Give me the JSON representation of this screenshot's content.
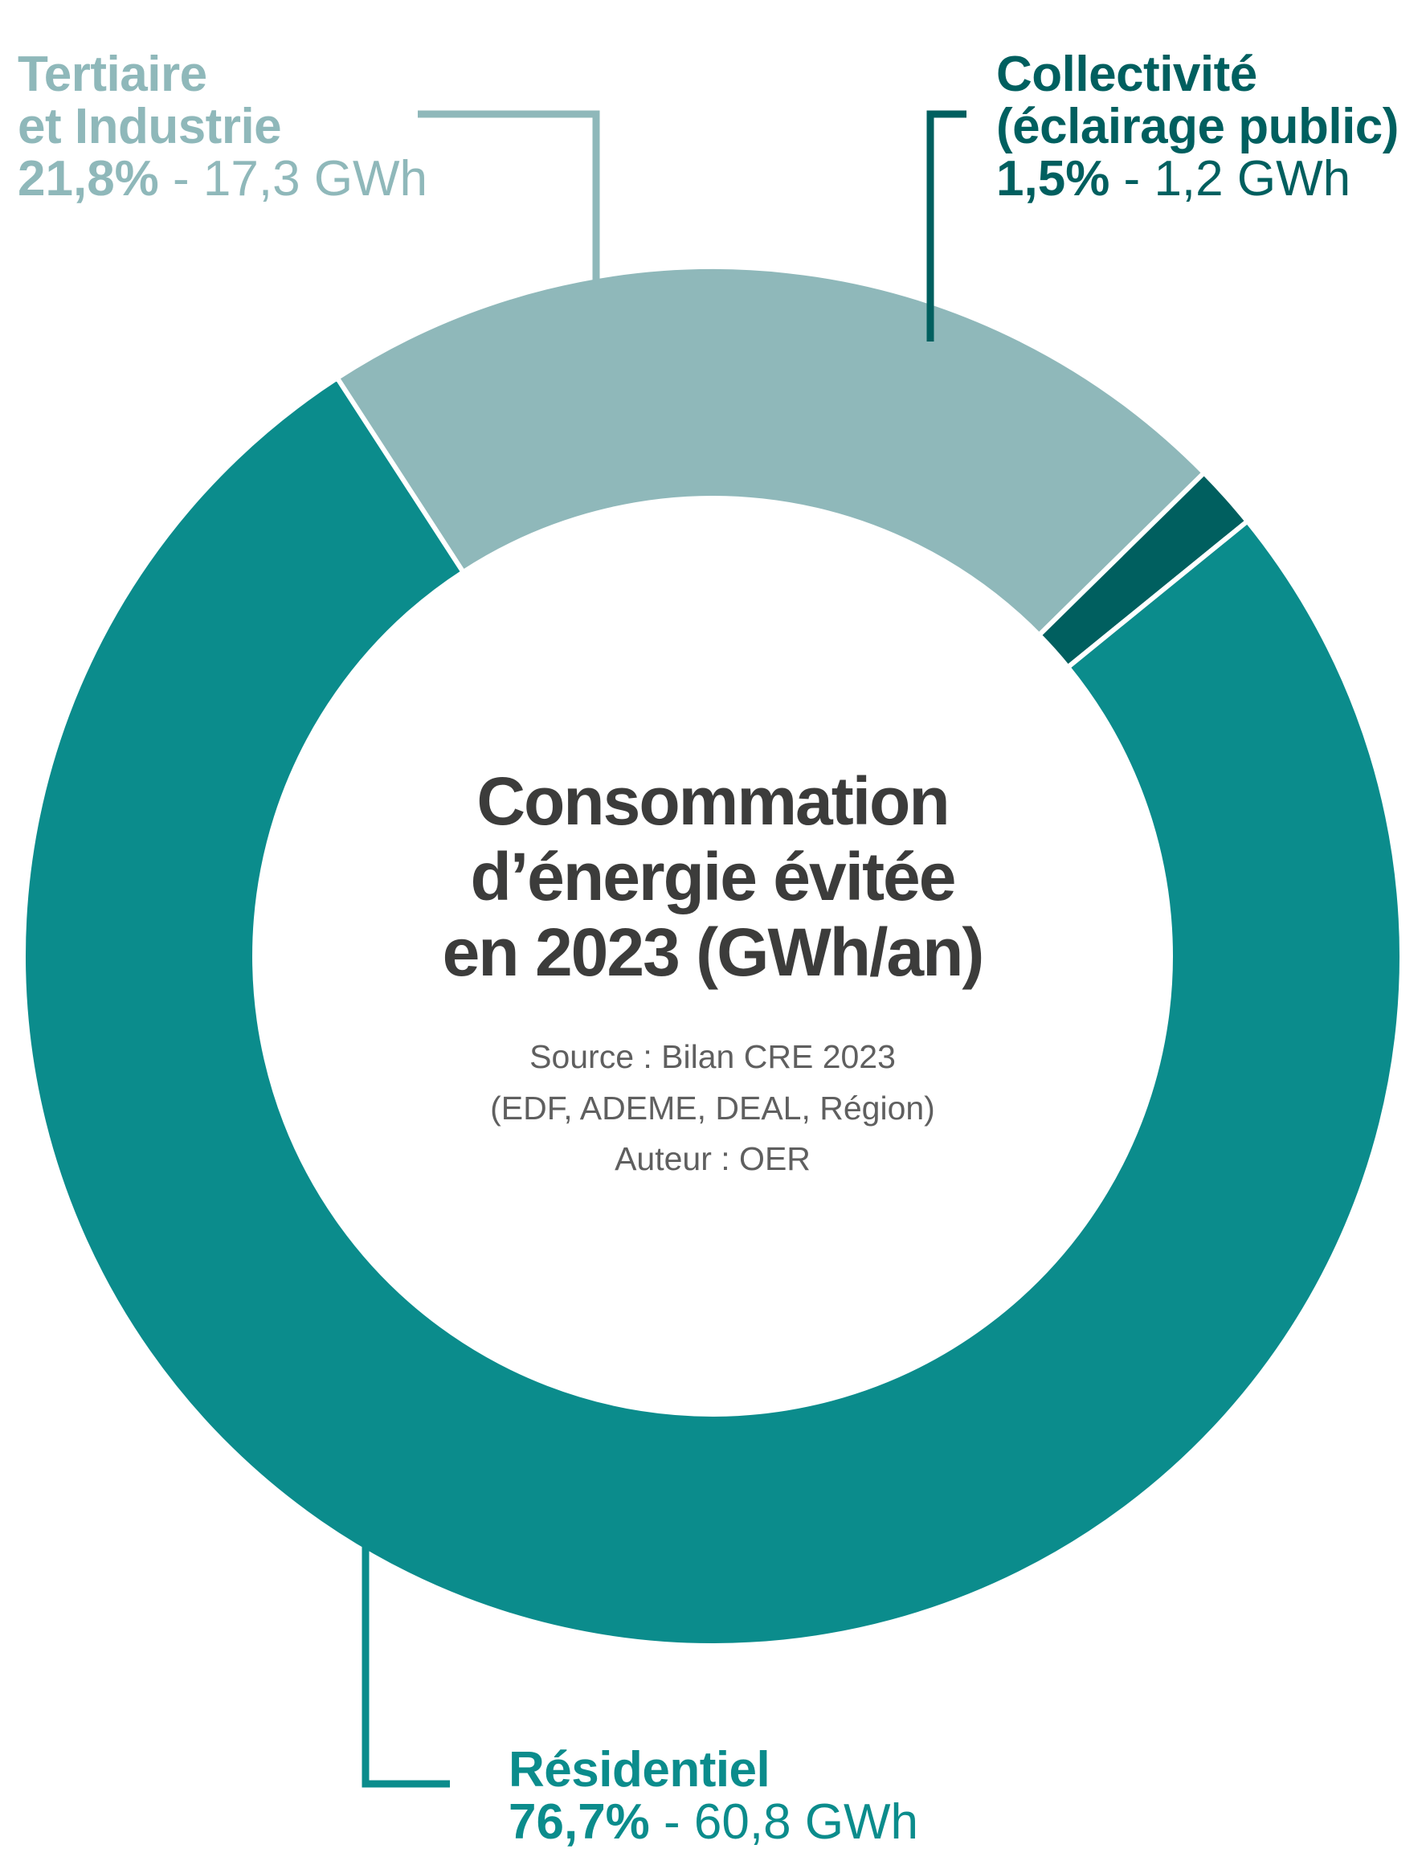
{
  "colors": {
    "residentiel": "#0b8c8c",
    "tertiaire": "#8fb8ba",
    "collectivite": "#005f5f",
    "title": "#3c3c3b",
    "source": "#5f5f5f"
  },
  "center": {
    "title_line1": "Consommation",
    "title_line2": "d’énergie évitée",
    "title_line3": "en 2023 (GWh/an)",
    "source_line1": "Source : Bilan CRE 2023",
    "source_line2": "(EDF, ADEME, DEAL, Région)",
    "source_line3": "Auteur : OER"
  },
  "labels": {
    "tertiaire": {
      "name_line1": "Tertiaire",
      "name_line2": "et Industrie",
      "pct": "21,8%",
      "sep": " - ",
      "gwh": "17,3 GWh"
    },
    "collectivite": {
      "name_line1": "Collectivité",
      "name_line2": "(éclairage public)",
      "pct": "1,5%",
      "sep": " - ",
      "gwh": "1,2 GWh"
    },
    "residentiel": {
      "name_line1": "Résidentiel",
      "pct": "76,7%",
      "sep": " - ",
      "gwh": "60,8 GWh"
    }
  },
  "chart_data": {
    "type": "pie",
    "title": "Consommation d’énergie évitée en 2023 (GWh/an)",
    "unit": "GWh",
    "slices": [
      {
        "key": "tertiaire",
        "label": "Tertiaire et Industrie",
        "percent": 21.8,
        "value": 17.3,
        "color": "#8fb8ba"
      },
      {
        "key": "collectivite",
        "label": "Collectivité (éclairage public)",
        "percent": 1.5,
        "value": 1.2,
        "color": "#005f5f"
      },
      {
        "key": "residentiel",
        "label": "Résidentiel",
        "percent": 76.7,
        "value": 60.8,
        "color": "#0b8c8c"
      }
    ]
  }
}
